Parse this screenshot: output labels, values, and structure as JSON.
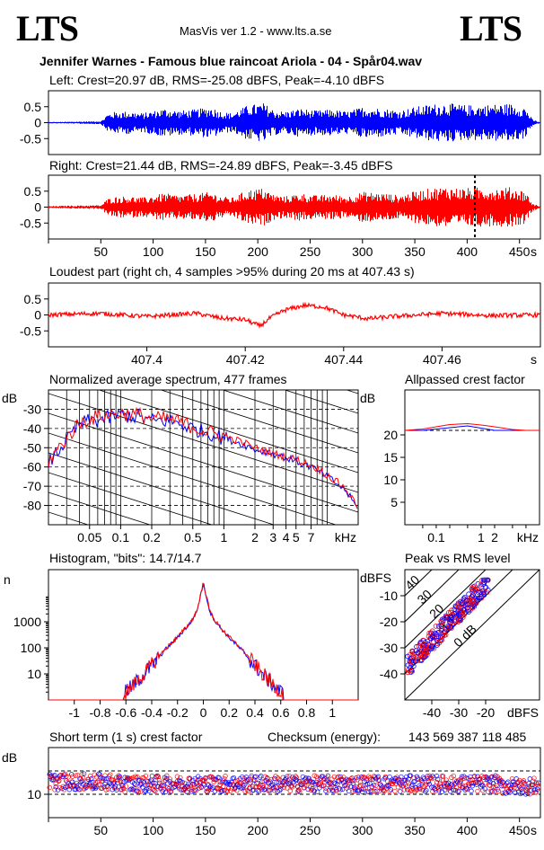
{
  "header": {
    "logo_left": "LTS",
    "logo_right": "LTS",
    "app_title": "MasVis ver 1.2 - www.lts.a.se",
    "track_title": "Jennifer Warnes - Famous blue raincoat Ariola - 04 - Spår04.wav"
  },
  "colors": {
    "left": "#0000ff",
    "right": "#ff0000",
    "grid": "#000000",
    "background": "#ffffff"
  },
  "chart_data": [
    {
      "id": "left_waveform",
      "type": "area",
      "title": "Left: Crest=20.97 dB, RMS=-25.08 dBFS, Peak=-4.10 dBFS",
      "y_ticks": [
        "0.5",
        "0",
        "-0.5"
      ],
      "ylim": [
        -1,
        1
      ],
      "xlim": [
        0,
        470
      ],
      "envelope_x": [
        0,
        20,
        50,
        55,
        60,
        75,
        90,
        110,
        125,
        140,
        155,
        165,
        175,
        190,
        205,
        215,
        225,
        240,
        255,
        270,
        285,
        300,
        320,
        335,
        350,
        365,
        380,
        395,
        410,
        425,
        440,
        455,
        462,
        470
      ],
      "envelope_peak": [
        0.02,
        0.03,
        0.05,
        0.25,
        0.33,
        0.36,
        0.3,
        0.45,
        0.38,
        0.42,
        0.5,
        0.35,
        0.3,
        0.55,
        0.62,
        0.4,
        0.35,
        0.45,
        0.38,
        0.42,
        0.35,
        0.5,
        0.45,
        0.38,
        0.5,
        0.58,
        0.62,
        0.56,
        0.55,
        0.58,
        0.6,
        0.5,
        0.1,
        0.01
      ],
      "series_color": "blue"
    },
    {
      "id": "right_waveform",
      "type": "area",
      "title": "Right: Crest=21.44 dB, RMS=-24.89 dBFS, Peak=-3.45 dBFS",
      "y_ticks": [
        "0.5",
        "0",
        "-0.5"
      ],
      "x_ticks": [
        "50",
        "100",
        "150",
        "200",
        "250",
        "300",
        "350",
        "400",
        "450"
      ],
      "x_unit": "s",
      "ylim": [
        -1,
        1
      ],
      "xlim": [
        0,
        470
      ],
      "marker_x": 407.43,
      "envelope_x": [
        0,
        20,
        50,
        55,
        60,
        75,
        90,
        110,
        125,
        140,
        155,
        165,
        175,
        190,
        205,
        215,
        225,
        240,
        255,
        270,
        285,
        300,
        320,
        335,
        350,
        365,
        380,
        395,
        410,
        425,
        440,
        455,
        462,
        470
      ],
      "envelope_peak": [
        0.03,
        0.05,
        0.06,
        0.24,
        0.32,
        0.35,
        0.3,
        0.44,
        0.37,
        0.42,
        0.48,
        0.34,
        0.3,
        0.55,
        0.6,
        0.4,
        0.34,
        0.44,
        0.37,
        0.4,
        0.34,
        0.48,
        0.44,
        0.37,
        0.5,
        0.6,
        0.64,
        0.6,
        0.62,
        0.6,
        0.63,
        0.52,
        0.12,
        0.02
      ],
      "series_color": "red"
    },
    {
      "id": "loudest_part",
      "type": "line",
      "title": "Loudest part (right ch, 4 samples >95% during 20 ms at 407.43 s)",
      "y_ticks": [
        "0.5",
        "0",
        "-0.5"
      ],
      "x_ticks": [
        "407.4",
        "407.42",
        "407.44",
        "407.46"
      ],
      "x_unit": "s",
      "xlim": [
        407.38,
        407.48
      ],
      "ylim": [
        -1,
        1
      ],
      "x": [
        407.38,
        407.39,
        407.4,
        407.41,
        407.415,
        407.42,
        407.423,
        407.425,
        407.428,
        407.432,
        407.436,
        407.44,
        407.445,
        407.45,
        407.46,
        407.47,
        407.48
      ],
      "y": [
        0.0,
        0.05,
        -0.05,
        0.05,
        -0.1,
        -0.15,
        -0.35,
        -0.1,
        0.15,
        0.3,
        0.25,
        0.0,
        -0.12,
        -0.05,
        0.05,
        -0.02,
        0.0
      ]
    },
    {
      "id": "spectrum",
      "type": "line",
      "title": "Normalized average spectrum, 477 frames",
      "y_unit": "dB",
      "y_ticks": [
        "-30",
        "-40",
        "-50",
        "-60",
        "-70",
        "-80"
      ],
      "x_ticks": [
        "0.05",
        "0.1",
        "0.2",
        "0.5",
        "1",
        "2",
        "3",
        "4",
        "5",
        "7"
      ],
      "x_unit": "kHz",
      "x_scale": "log",
      "xlim": [
        0.02,
        20
      ],
      "ylim": [
        -90,
        -20
      ],
      "x": [
        0.02,
        0.03,
        0.04,
        0.05,
        0.07,
        0.1,
        0.15,
        0.2,
        0.3,
        0.5,
        0.7,
        1,
        1.5,
        2,
        3,
        5,
        7,
        10,
        15,
        20
      ],
      "series": [
        {
          "name": "L",
          "values": [
            -58,
            -46,
            -38,
            -36,
            -35,
            -33,
            -34,
            -36,
            -36,
            -40,
            -42,
            -45,
            -48,
            -51,
            -53,
            -57,
            -60,
            -65,
            -72,
            -82
          ]
        },
        {
          "name": "R",
          "values": [
            -57,
            -45,
            -37,
            -35,
            -33,
            -32,
            -33,
            -35,
            -35,
            -39,
            -42,
            -44,
            -47,
            -50,
            -53,
            -56,
            -59,
            -64,
            -71,
            -81
          ]
        }
      ]
    },
    {
      "id": "allpassed_crest",
      "type": "line",
      "title": "Allpassed crest factor",
      "y_unit": "dB",
      "y_ticks": [
        "20",
        "15",
        "10",
        "5"
      ],
      "x_ticks": [
        "0.1",
        "1",
        "2"
      ],
      "x_unit": "kHz",
      "x_scale": "log",
      "xlim": [
        0.02,
        20
      ],
      "ylim": [
        0,
        30
      ],
      "x": [
        0.02,
        0.05,
        0.1,
        0.2,
        0.5,
        1,
        2,
        5,
        10,
        20
      ],
      "series": [
        {
          "name": "L",
          "values": [
            21.0,
            21.0,
            21.3,
            21.6,
            22.0,
            21.5,
            21.0,
            21.0,
            21.0,
            21.0
          ]
        },
        {
          "name": "R",
          "values": [
            21.0,
            21.3,
            21.8,
            22.3,
            22.5,
            22.2,
            21.8,
            21.2,
            21.0,
            21.0
          ]
        }
      ],
      "reference_level": 21
    },
    {
      "id": "histogram",
      "type": "line",
      "title": "Histogram, \"bits\": 14.7/14.7",
      "y_unit": "n",
      "y_scale": "log",
      "y_ticks": [
        "1000",
        "100",
        "10"
      ],
      "x_ticks": [
        "-1",
        "-0.8",
        "-0.6",
        "-0.4",
        "-0.2",
        "0",
        "0.2",
        "0.4",
        "0.6",
        "0.8",
        "1"
      ],
      "xlim": [
        -1.2,
        1.2
      ],
      "ylim": [
        1,
        100000
      ],
      "x": [
        -0.6,
        -0.5,
        -0.4,
        -0.3,
        -0.2,
        -0.1,
        -0.05,
        0,
        0.05,
        0.1,
        0.2,
        0.3,
        0.4,
        0.5,
        0.6
      ],
      "series": [
        {
          "name": "L",
          "values": [
            2,
            6,
            20,
            80,
            250,
            900,
            2500,
            30000,
            2500,
            900,
            250,
            80,
            20,
            6,
            2
          ]
        },
        {
          "name": "R",
          "values": [
            2,
            6,
            22,
            85,
            260,
            950,
            2600,
            32000,
            2600,
            950,
            260,
            85,
            22,
            6,
            2
          ]
        }
      ]
    },
    {
      "id": "peak_vs_rms",
      "type": "scatter",
      "title": "Peak vs RMS level",
      "y_unit": "dBFS",
      "x_unit": "dBFS",
      "y_ticks": [
        "-10",
        "-20",
        "-30",
        "-40"
      ],
      "x_ticks": [
        "-40",
        "-30",
        "-20"
      ],
      "diagonal_labels": [
        "40",
        "30",
        "20",
        "10",
        "0 dB"
      ],
      "xlim": [
        -50,
        0
      ],
      "ylim": [
        -50,
        0
      ],
      "x_range_points": [
        -49,
        -19
      ],
      "y_range_points": [
        -38,
        -5
      ]
    },
    {
      "id": "short_term_crest",
      "type": "scatter",
      "title": "Short term (1 s) crest factor",
      "checksum_label": "Checksum (energy):",
      "checksum_value": "143 569 387 118 485",
      "y_unit": "dB",
      "y_ticks": [
        "10"
      ],
      "x_ticks": [
        "50",
        "100",
        "150",
        "200",
        "250",
        "300",
        "350",
        "400",
        "450"
      ],
      "x_unit": "s",
      "xlim": [
        0,
        470
      ],
      "ylim": [
        0,
        30
      ],
      "dashed_levels": [
        10,
        20
      ],
      "mean_level": 14.5,
      "spread": 3.5
    }
  ]
}
